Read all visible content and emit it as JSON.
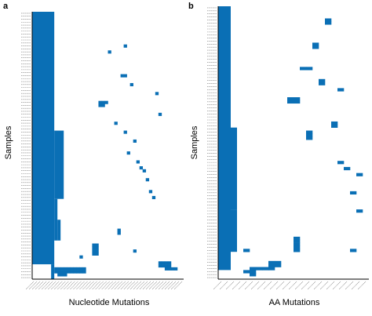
{
  "colors": {
    "cell": "#0a6fb5",
    "axis": "#000000",
    "tick": "#777777"
  },
  "chart_data": [
    {
      "panel": "a",
      "type": "heatmap",
      "xlabel": "Nucleotide Mutations",
      "ylabel": "Samples",
      "n_samples": 90,
      "n_mutations": 48,
      "x_tick_labels_legible": false,
      "y_tick_labels_legible": false,
      "row_blocks": [
        {
          "mut_from": 0,
          "mut_to": 6,
          "row_from": 0,
          "row_to": 84
        },
        {
          "mut_from": 7,
          "mut_to": 9,
          "row_from": 40,
          "row_to": 62
        },
        {
          "mut_from": 7,
          "mut_to": 7,
          "row_from": 63,
          "row_to": 76
        },
        {
          "mut_from": 8,
          "mut_to": 8,
          "row_from": 70,
          "row_to": 76
        },
        {
          "mut_from": 6,
          "mut_to": 6,
          "row_from": 85,
          "row_to": 89
        }
      ],
      "cells": [
        {
          "mut": 24,
          "row": 13
        },
        {
          "mut": 29,
          "row": 11
        },
        {
          "mut": 28,
          "row": 21
        },
        {
          "mut": 29,
          "row": 21
        },
        {
          "mut": 31,
          "row": 24
        },
        {
          "mut": 39,
          "row": 27
        },
        {
          "mut": 21,
          "row": 30
        },
        {
          "mut": 22,
          "row": 30
        },
        {
          "mut": 23,
          "row": 30
        },
        {
          "mut": 21,
          "row": 31
        },
        {
          "mut": 22,
          "row": 31
        },
        {
          "mut": 40,
          "row": 34
        },
        {
          "mut": 26,
          "row": 37
        },
        {
          "mut": 29,
          "row": 40
        },
        {
          "mut": 32,
          "row": 43
        },
        {
          "mut": 30,
          "row": 47
        },
        {
          "mut": 33,
          "row": 50
        },
        {
          "mut": 34,
          "row": 52
        },
        {
          "mut": 35,
          "row": 53
        },
        {
          "mut": 36,
          "row": 56
        },
        {
          "mut": 37,
          "row": 60
        },
        {
          "mut": 38,
          "row": 62
        },
        {
          "mut": 27,
          "row": 73
        },
        {
          "mut": 27,
          "row": 74
        },
        {
          "mut": 32,
          "row": 80
        },
        {
          "mut": 19,
          "row": 78
        },
        {
          "mut": 20,
          "row": 78
        },
        {
          "mut": 19,
          "row": 79
        },
        {
          "mut": 20,
          "row": 79
        },
        {
          "mut": 19,
          "row": 80
        },
        {
          "mut": 20,
          "row": 80
        },
        {
          "mut": 19,
          "row": 81
        },
        {
          "mut": 20,
          "row": 81
        },
        {
          "mut": 15,
          "row": 82
        },
        {
          "mut": 40,
          "row": 84
        },
        {
          "mut": 41,
          "row": 84
        },
        {
          "mut": 42,
          "row": 84
        },
        {
          "mut": 43,
          "row": 84
        },
        {
          "mut": 40,
          "row": 85
        },
        {
          "mut": 41,
          "row": 85
        },
        {
          "mut": 42,
          "row": 85
        },
        {
          "mut": 43,
          "row": 85
        },
        {
          "mut": 42,
          "row": 86
        },
        {
          "mut": 43,
          "row": 86
        },
        {
          "mut": 44,
          "row": 86
        },
        {
          "mut": 45,
          "row": 86
        },
        {
          "mut": 7,
          "row": 86
        },
        {
          "mut": 8,
          "row": 86
        },
        {
          "mut": 9,
          "row": 86
        },
        {
          "mut": 10,
          "row": 86
        },
        {
          "mut": 11,
          "row": 86
        },
        {
          "mut": 12,
          "row": 86
        },
        {
          "mut": 13,
          "row": 86
        },
        {
          "mut": 14,
          "row": 86
        },
        {
          "mut": 15,
          "row": 86
        },
        {
          "mut": 16,
          "row": 86
        },
        {
          "mut": 7,
          "row": 87
        },
        {
          "mut": 8,
          "row": 87
        },
        {
          "mut": 9,
          "row": 87
        },
        {
          "mut": 10,
          "row": 87
        },
        {
          "mut": 11,
          "row": 87
        },
        {
          "mut": 12,
          "row": 87
        },
        {
          "mut": 13,
          "row": 87
        },
        {
          "mut": 14,
          "row": 87
        },
        {
          "mut": 15,
          "row": 87
        },
        {
          "mut": 16,
          "row": 87
        },
        {
          "mut": 8,
          "row": 88
        },
        {
          "mut": 9,
          "row": 88
        },
        {
          "mut": 10,
          "row": 88
        }
      ]
    },
    {
      "panel": "b",
      "type": "heatmap",
      "xlabel": "AA Mutations",
      "ylabel": "Samples",
      "n_samples": 90,
      "n_mutations": 24,
      "x_tick_labels_legible": false,
      "y_tick_labels_legible": false,
      "row_blocks": [
        {
          "mut_from": 0,
          "mut_to": 1,
          "row_from": 0,
          "row_to": 86
        },
        {
          "mut_from": 2,
          "mut_to": 2,
          "row_from": 40,
          "row_to": 66
        },
        {
          "mut_from": 2,
          "mut_to": 2,
          "row_from": 67,
          "row_to": 80
        }
      ],
      "cells": [
        {
          "mut": 17,
          "row": 4
        },
        {
          "mut": 17,
          "row": 5
        },
        {
          "mut": 15,
          "row": 12
        },
        {
          "mut": 15,
          "row": 13
        },
        {
          "mut": 13,
          "row": 20
        },
        {
          "mut": 14,
          "row": 20
        },
        {
          "mut": 16,
          "row": 24
        },
        {
          "mut": 16,
          "row": 25
        },
        {
          "mut": 19,
          "row": 27
        },
        {
          "mut": 11,
          "row": 30
        },
        {
          "mut": 11,
          "row": 31
        },
        {
          "mut": 12,
          "row": 30
        },
        {
          "mut": 12,
          "row": 31
        },
        {
          "mut": 18,
          "row": 38
        },
        {
          "mut": 18,
          "row": 39
        },
        {
          "mut": 14,
          "row": 41
        },
        {
          "mut": 14,
          "row": 42
        },
        {
          "mut": 14,
          "row": 43
        },
        {
          "mut": 19,
          "row": 51
        },
        {
          "mut": 20,
          "row": 53
        },
        {
          "mut": 22,
          "row": 55
        },
        {
          "mut": 21,
          "row": 61
        },
        {
          "mut": 22,
          "row": 67
        },
        {
          "mut": 21,
          "row": 80
        },
        {
          "mut": 12,
          "row": 76
        },
        {
          "mut": 12,
          "row": 77
        },
        {
          "mut": 12,
          "row": 78
        },
        {
          "mut": 12,
          "row": 79
        },
        {
          "mut": 12,
          "row": 80
        },
        {
          "mut": 4,
          "row": 80
        },
        {
          "mut": 8,
          "row": 84
        },
        {
          "mut": 9,
          "row": 84
        },
        {
          "mut": 8,
          "row": 85
        },
        {
          "mut": 9,
          "row": 85
        },
        {
          "mut": 7,
          "row": 86
        },
        {
          "mut": 8,
          "row": 86
        },
        {
          "mut": 5,
          "row": 86
        },
        {
          "mut": 6,
          "row": 86
        },
        {
          "mut": 4,
          "row": 87
        },
        {
          "mut": 5,
          "row": 87
        },
        {
          "mut": 5,
          "row": 88
        }
      ]
    }
  ]
}
